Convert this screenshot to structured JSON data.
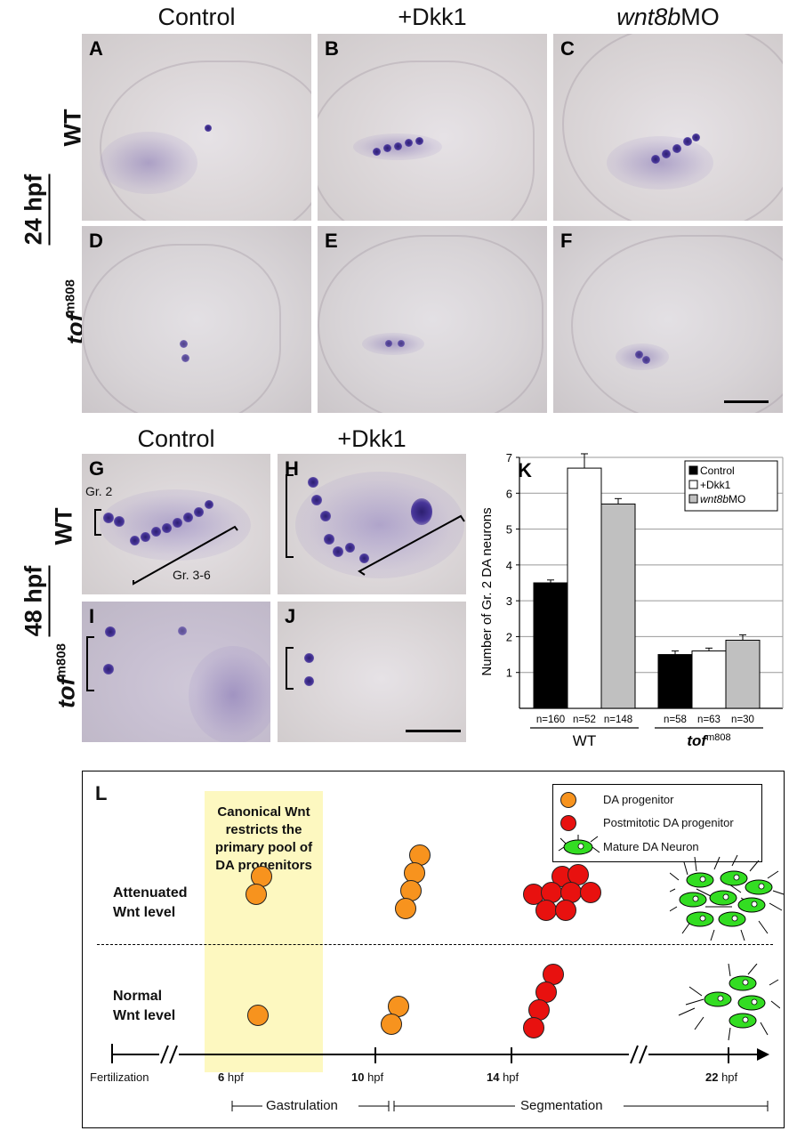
{
  "top_columns": {
    "control": "Control",
    "dkk1": "+Dkk1",
    "wnt8b": "wnt8b",
    "wnt8b_suffix": "MO"
  },
  "row_labels": {
    "wt": "WT",
    "tof": "tof",
    "tof_sup": "m808",
    "hpf24": "24 hpf",
    "hpf48": "48 hpf"
  },
  "panel_labels": {
    "A": "A",
    "B": "B",
    "C": "C",
    "D": "D",
    "E": "E",
    "F": "F",
    "G": "G",
    "H": "H",
    "I": "I",
    "J": "J",
    "K": "K",
    "L": "L"
  },
  "mid_columns": {
    "control": "Control",
    "dkk1": "+Dkk1"
  },
  "g_annotations": {
    "gr2": "Gr. 2",
    "gr36": "Gr. 3-6"
  },
  "chart_data": {
    "type": "bar",
    "ylabel": "Number of Gr. 2 DA neurons",
    "ylim": [
      0,
      7
    ],
    "yticks": [
      1,
      2,
      3,
      4,
      5,
      6,
      7
    ],
    "grid": true,
    "legend_position": "top-right",
    "legend": [
      {
        "name": "Control",
        "color": "#000000"
      },
      {
        "name": "+Dkk1",
        "color": "#ffffff"
      },
      {
        "name": "wnt8bMO",
        "italic_part": "wnt8b",
        "plain_part": "MO",
        "color": "#c0c0c0"
      }
    ],
    "groups": [
      {
        "label": "WT",
        "bars": [
          {
            "series": "Control",
            "value": 3.5,
            "error": 0.08,
            "n": "n=160"
          },
          {
            "series": "+Dkk1",
            "value": 6.7,
            "error": 0.4,
            "n": "n=52"
          },
          {
            "series": "wnt8bMO",
            "value": 5.7,
            "error": 0.15,
            "n": "n=148"
          }
        ]
      },
      {
        "label": "tof",
        "label_sup": "m808",
        "bars": [
          {
            "series": "Control",
            "value": 1.5,
            "error": 0.1,
            "n": "n=58"
          },
          {
            "series": "+Dkk1",
            "value": 1.6,
            "error": 0.08,
            "n": "n=63"
          },
          {
            "series": "wnt8bMO",
            "value": 1.9,
            "error": 0.15,
            "n": "n=30"
          }
        ]
      }
    ]
  },
  "model": {
    "highlight_text": [
      "Canonical Wnt",
      "restricts the",
      "primary pool of",
      "DA progenitors"
    ],
    "legend": {
      "progenitor": "DA progenitor",
      "postmitotic": "Postmitotic DA progenitor",
      "mature": "Mature DA Neuron",
      "orange": "#f7931e",
      "red": "#e8110f",
      "green": "#33dd22"
    },
    "rows": {
      "attenuated": [
        "Attenuated",
        "Wnt level"
      ],
      "normal": [
        "Normal",
        "Wnt level"
      ]
    },
    "timeline": {
      "fertilization": "Fertilization",
      "t6": "6",
      "t10": "10",
      "t14": "14",
      "t22": "22",
      "unit": " hpf"
    },
    "stages": {
      "gastrulation": "Gastrulation",
      "segmentation": "Segmentation"
    }
  }
}
